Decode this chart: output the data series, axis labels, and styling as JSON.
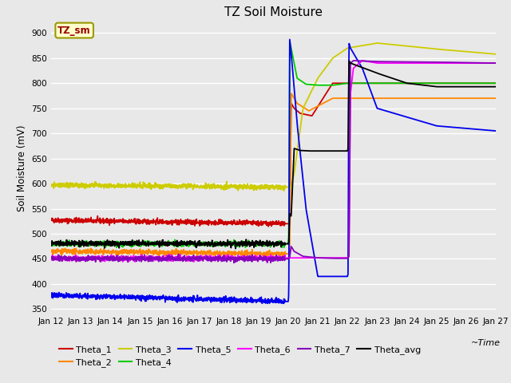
{
  "title": "TZ Soil Moisture",
  "ylabel": "Soil Moisture (mV)",
  "bg_color": "#e8e8e8",
  "grid_color": "white",
  "yticks": [
    350,
    400,
    450,
    500,
    550,
    600,
    650,
    700,
    750,
    800,
    850,
    900
  ],
  "x_labels": [
    "Jan 12",
    "Jan 13",
    "Jan 14",
    "Jan 15",
    "Jan 16",
    "Jan 17",
    "Jan 18",
    "Jan 19",
    "Jan 20",
    "Jan 21",
    "Jan 22",
    "Jan 23",
    "Jan 24",
    "Jan 25",
    "Jan 26",
    "Jan 27"
  ],
  "series": [
    {
      "name": "Theta_1",
      "color": "#cc0000",
      "t": [
        0,
        8,
        8.05,
        8.1,
        8.2,
        8.4,
        8.8,
        9.5,
        10,
        11,
        13,
        15
      ],
      "y": [
        527,
        520,
        522,
        760,
        750,
        740,
        735,
        800,
        800,
        800,
        800,
        800
      ]
    },
    {
      "name": "Theta_2",
      "color": "#ff8800",
      "t": [
        0,
        8,
        8.05,
        8.1,
        8.3,
        8.7,
        9.5,
        10,
        11,
        13,
        15
      ],
      "y": [
        465,
        460,
        462,
        780,
        760,
        745,
        770,
        770,
        770,
        770,
        770
      ]
    },
    {
      "name": "Theta_3",
      "color": "#cccc00",
      "t": [
        0,
        8,
        8.05,
        8.1,
        8.2,
        8.5,
        9.0,
        9.5,
        10,
        11,
        13,
        15
      ],
      "y": [
        597,
        593,
        590,
        592,
        620,
        750,
        810,
        850,
        870,
        880,
        868,
        858
      ]
    },
    {
      "name": "Theta_4",
      "color": "#00cc00",
      "t": [
        0,
        8,
        8.02,
        8.05,
        8.1,
        8.3,
        8.6,
        9,
        9.5,
        10,
        11,
        13,
        15
      ],
      "y": [
        480,
        480,
        500,
        885,
        870,
        810,
        798,
        796,
        796,
        800,
        800,
        800,
        800
      ]
    },
    {
      "name": "Theta_5",
      "color": "#0000ee",
      "t": [
        0,
        8,
        8.02,
        8.05,
        8.1,
        8.3,
        8.6,
        9.0,
        9.5,
        10,
        10.02,
        10.05,
        10.1,
        10.5,
        11,
        13,
        15
      ],
      "y": [
        378,
        365,
        380,
        888,
        860,
        720,
        550,
        415,
        415,
        415,
        420,
        880,
        870,
        830,
        750,
        715,
        705
      ]
    },
    {
      "name": "Theta_6",
      "color": "#ff00ff",
      "t": [
        0,
        10,
        10.05,
        10.1,
        10.2,
        10.5,
        11,
        12,
        13,
        15
      ],
      "y": [
        451,
        452,
        455,
        780,
        830,
        845,
        840,
        840,
        840,
        840
      ]
    },
    {
      "name": "Theta_7",
      "color": "#8800bb",
      "t": [
        0,
        8,
        8.05,
        8.1,
        8.2,
        8.5,
        9,
        9.5,
        10,
        10.05,
        10.1,
        10.2,
        11,
        13,
        15
      ],
      "y": [
        451,
        450,
        453,
        475,
        465,
        455,
        452,
        451,
        451,
        455,
        840,
        845,
        843,
        842,
        840
      ]
    },
    {
      "name": "Theta_avg",
      "color": "#000000",
      "t": [
        0,
        8,
        8.02,
        8.05,
        8.1,
        8.2,
        8.4,
        8.7,
        9.0,
        9.5,
        10,
        10.02,
        10.05,
        10.1,
        11,
        12,
        13,
        15
      ],
      "y": [
        481,
        480,
        483,
        540,
        535,
        670,
        666,
        665,
        665,
        665,
        665,
        670,
        845,
        840,
        820,
        800,
        793,
        793
      ]
    }
  ]
}
